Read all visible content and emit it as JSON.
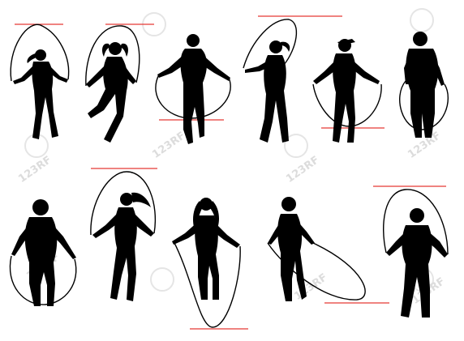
{
  "image": {
    "background": "#ffffff",
    "silhouette_color": "#000000",
    "marker_color": "#e53935",
    "watermark_color": "#d9d9d9",
    "watermark_text": "123RF",
    "figure_count": 11
  }
}
